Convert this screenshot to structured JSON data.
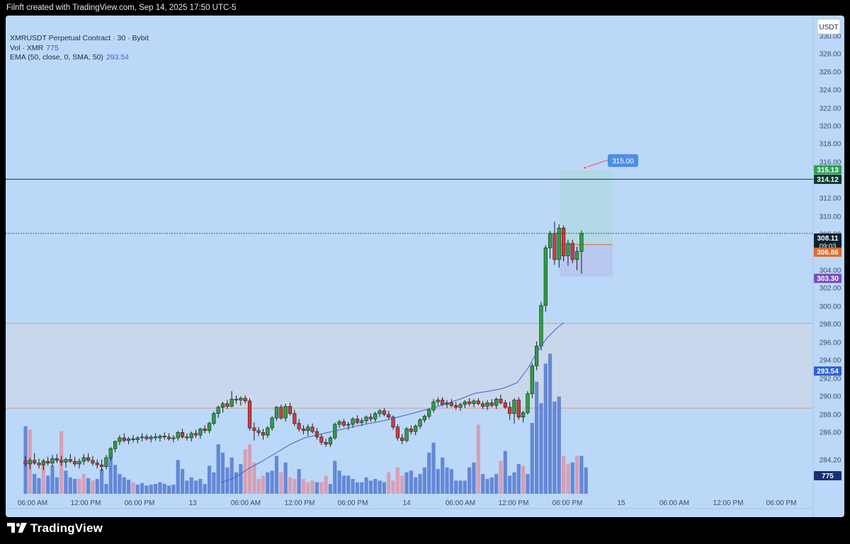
{
  "header": {
    "credit": "Filnft created with TradingView.com, Sep 14, 2025 17:50 UTC-5"
  },
  "legend": {
    "symbol": "XMRUSDT Perpetual Contract · 30 · Bybit",
    "vol_label": "Vol · XMR",
    "vol_value": "775",
    "ema_label": "EMA (50, close, 0, SMA, 50)",
    "ema_value": "293.54"
  },
  "currency_button": "USDT",
  "branding": {
    "logo_text": "TradingView"
  },
  "colors": {
    "background": "#bcd8f8",
    "up_candle": "#2ea043",
    "down_candle": "#d33b3b",
    "ema_line": "#3b63c9",
    "volume_up": "#5b7fd1",
    "volume_down": "#d79aae",
    "demand_zone": "#c9d7ec",
    "zone_border": "#d99a8a",
    "target_zone": "#b3d8e6",
    "stop_zone": "#b8c8f0"
  },
  "chart_data": {
    "type": "candlestick",
    "y_axis": {
      "range": [
        281.6,
        331.0
      ],
      "ticks": [
        "330.00",
        "328.00",
        "326.00",
        "324.00",
        "322.00",
        "320.00",
        "318.00",
        "316.00",
        "314.00",
        "312.00",
        "310.00",
        "308.00",
        "306.00",
        "304.00",
        "302.00",
        "300.00",
        "298.00",
        "296.00",
        "294.00",
        "292.00",
        "290.00",
        "288.00",
        "286.00",
        "284.20",
        "282.40"
      ]
    },
    "x_axis": {
      "ticks": [
        "06:00 AM",
        "12:00 PM",
        "06:00 PM",
        "13",
        "06:00 AM",
        "12:00 PM",
        "06:00 PM",
        "14",
        "06:00 AM",
        "12:00 PM",
        "06:00 PM",
        "15",
        "06:00 AM",
        "12:00 PM",
        "06:00 PM"
      ]
    },
    "price_labels": [
      {
        "value": "315.13",
        "color": "#2f9e55"
      },
      {
        "value": "314.12",
        "color": "#0d3b2e"
      },
      {
        "value": "308.11",
        "sub": "09:03",
        "color": "#0c2230"
      },
      {
        "value": "306.86",
        "color": "#e06a2b"
      },
      {
        "value": "303.30",
        "color": "#7b4fc0"
      },
      {
        "value": "293.54",
        "color": "#2f63d6"
      },
      {
        "value": "775",
        "color": "#1c2f73"
      }
    ],
    "lines": {
      "resistance": 314.12,
      "last_price": 308.11,
      "zone_top": 298.1,
      "zone_bottom": 288.7
    },
    "position": {
      "target": 315.13,
      "entry": 306.86,
      "stop": 303.3,
      "projection_label": "315.00",
      "projection_start": [
        315.0,
        315.0
      ]
    },
    "ohlc": [
      [
        282.8,
        283.4,
        282.2,
        282.5
      ],
      [
        282.5,
        283.2,
        281.9,
        282.9
      ],
      [
        282.9,
        283.7,
        282.4,
        282.6
      ],
      [
        282.6,
        283.1,
        282.0,
        282.4
      ],
      [
        282.4,
        283.0,
        281.8,
        282.8
      ],
      [
        282.8,
        283.3,
        282.3,
        282.6
      ],
      [
        282.6,
        283.5,
        282.2,
        283.1
      ],
      [
        283.1,
        283.6,
        282.6,
        282.9
      ],
      [
        282.9,
        283.4,
        282.3,
        282.7
      ],
      [
        282.7,
        283.2,
        282.1,
        283.0
      ],
      [
        283.0,
        283.6,
        282.6,
        282.8
      ],
      [
        282.8,
        283.3,
        282.2,
        282.5
      ],
      [
        282.5,
        283.1,
        282.0,
        282.8
      ],
      [
        282.8,
        283.6,
        282.4,
        283.2
      ],
      [
        283.2,
        283.7,
        282.7,
        282.9
      ],
      [
        282.9,
        283.4,
        282.3,
        282.6
      ],
      [
        282.6,
        283.0,
        282.0,
        282.4
      ],
      [
        282.4,
        283.0,
        281.7,
        282.2
      ],
      [
        282.2,
        283.5,
        281.9,
        283.2
      ],
      [
        283.2,
        284.4,
        282.9,
        284.2
      ],
      [
        284.2,
        285.1,
        283.8,
        285.0
      ],
      [
        285.0,
        285.7,
        284.6,
        285.4
      ],
      [
        285.4,
        285.9,
        284.9,
        285.1
      ],
      [
        285.1,
        285.5,
        284.7,
        285.3
      ],
      [
        285.3,
        285.7,
        284.9,
        285.2
      ],
      [
        285.2,
        285.6,
        284.8,
        285.4
      ],
      [
        285.4,
        285.9,
        285.0,
        285.5
      ],
      [
        285.5,
        285.8,
        285.1,
        285.3
      ],
      [
        285.3,
        285.7,
        284.9,
        285.5
      ],
      [
        285.5,
        285.9,
        285.1,
        285.4
      ],
      [
        285.4,
        285.8,
        285.0,
        285.6
      ],
      [
        285.6,
        286.0,
        285.2,
        285.5
      ],
      [
        285.5,
        285.9,
        285.1,
        285.3
      ],
      [
        285.3,
        285.7,
        284.9,
        285.4
      ],
      [
        285.4,
        286.2,
        285.1,
        286.0
      ],
      [
        286.0,
        286.4,
        285.3,
        285.5
      ],
      [
        285.5,
        285.9,
        285.1,
        285.4
      ],
      [
        285.4,
        286.1,
        285.0,
        285.9
      ],
      [
        285.9,
        286.3,
        285.4,
        285.7
      ],
      [
        285.7,
        286.5,
        285.3,
        286.4
      ],
      [
        286.4,
        286.8,
        285.9,
        286.2
      ],
      [
        286.2,
        287.2,
        285.9,
        287.0
      ],
      [
        287.0,
        288.3,
        286.8,
        288.1
      ],
      [
        288.1,
        289.0,
        287.6,
        288.8
      ],
      [
        288.8,
        289.4,
        288.2,
        289.2
      ],
      [
        289.2,
        289.6,
        288.6,
        288.9
      ],
      [
        288.9,
        290.6,
        288.8,
        289.7
      ],
      [
        289.7,
        290.1,
        289.2,
        289.6
      ],
      [
        289.6,
        290.0,
        289.0,
        289.8
      ],
      [
        289.8,
        290.1,
        289.2,
        289.5
      ],
      [
        289.5,
        289.8,
        286.2,
        286.5
      ],
      [
        286.5,
        287.1,
        285.1,
        286.2
      ],
      [
        286.2,
        286.6,
        285.6,
        286.0
      ],
      [
        286.0,
        286.4,
        285.2,
        285.7
      ],
      [
        285.7,
        286.7,
        285.4,
        286.5
      ],
      [
        286.5,
        287.8,
        286.2,
        287.6
      ],
      [
        287.6,
        288.9,
        287.3,
        288.8
      ],
      [
        288.8,
        289.1,
        287.4,
        287.6
      ],
      [
        287.6,
        289.2,
        287.2,
        288.9
      ],
      [
        288.9,
        289.3,
        287.9,
        288.1
      ],
      [
        288.1,
        288.5,
        286.7,
        287.0
      ],
      [
        287.0,
        287.5,
        286.1,
        286.4
      ],
      [
        286.4,
        286.8,
        285.8,
        286.2
      ],
      [
        286.2,
        286.9,
        285.6,
        286.6
      ],
      [
        286.6,
        287.0,
        285.9,
        286.1
      ],
      [
        286.1,
        286.5,
        285.2,
        285.5
      ],
      [
        285.5,
        285.8,
        284.6,
        284.9
      ],
      [
        284.9,
        285.3,
        284.4,
        284.7
      ],
      [
        284.7,
        285.6,
        284.4,
        285.4
      ],
      [
        285.4,
        287.1,
        285.2,
        286.9
      ],
      [
        286.9,
        287.4,
        286.5,
        287.2
      ],
      [
        287.2,
        287.5,
        286.6,
        286.8
      ],
      [
        286.8,
        287.2,
        286.3,
        286.9
      ],
      [
        286.9,
        287.7,
        286.5,
        287.5
      ],
      [
        287.5,
        287.9,
        286.9,
        287.1
      ],
      [
        287.1,
        287.6,
        286.7,
        287.3
      ],
      [
        287.3,
        287.9,
        286.9,
        287.7
      ],
      [
        287.7,
        288.1,
        287.2,
        287.5
      ],
      [
        287.5,
        288.3,
        287.2,
        288.1
      ],
      [
        288.1,
        288.6,
        287.7,
        288.4
      ],
      [
        288.4,
        288.7,
        287.8,
        288.0
      ],
      [
        288.0,
        288.4,
        287.4,
        287.7
      ],
      [
        287.7,
        287.9,
        286.3,
        286.6
      ],
      [
        286.6,
        286.9,
        285.1,
        285.4
      ],
      [
        285.4,
        285.8,
        284.7,
        285.1
      ],
      [
        285.1,
        286.6,
        284.9,
        286.4
      ],
      [
        286.4,
        286.8,
        285.8,
        286.1
      ],
      [
        286.1,
        286.9,
        285.7,
        286.7
      ],
      [
        286.7,
        287.6,
        286.4,
        287.4
      ],
      [
        287.4,
        288.0,
        287.1,
        287.8
      ],
      [
        287.8,
        288.7,
        287.5,
        288.5
      ],
      [
        288.5,
        289.7,
        288.2,
        289.4
      ],
      [
        289.4,
        289.9,
        289.0,
        289.6
      ],
      [
        289.6,
        289.9,
        288.9,
        289.1
      ],
      [
        289.1,
        289.6,
        288.7,
        289.3
      ],
      [
        289.3,
        289.7,
        288.8,
        289.0
      ],
      [
        289.0,
        289.4,
        288.5,
        288.8
      ],
      [
        288.8,
        289.3,
        288.4,
        289.1
      ],
      [
        289.1,
        289.6,
        288.7,
        289.4
      ],
      [
        289.4,
        289.8,
        288.9,
        289.2
      ],
      [
        289.2,
        289.7,
        288.8,
        289.5
      ],
      [
        289.5,
        289.8,
        289.0,
        289.2
      ],
      [
        289.2,
        289.5,
        288.6,
        288.9
      ],
      [
        288.9,
        289.6,
        288.5,
        289.3
      ],
      [
        289.3,
        289.7,
        288.8,
        289.0
      ],
      [
        289.0,
        289.9,
        288.6,
        289.7
      ],
      [
        289.7,
        290.2,
        289.1,
        289.3
      ],
      [
        289.3,
        289.6,
        288.6,
        288.8
      ],
      [
        288.8,
        289.4,
        287.4,
        288.1
      ],
      [
        288.1,
        289.8,
        287.0,
        289.6
      ],
      [
        289.6,
        289.9,
        287.4,
        287.7
      ],
      [
        287.7,
        288.4,
        287.1,
        288.2
      ],
      [
        288.2,
        290.6,
        288.0,
        290.3
      ],
      [
        290.3,
        293.7,
        289.8,
        293.4
      ],
      [
        293.4,
        296.1,
        292.9,
        295.6
      ],
      [
        295.6,
        300.5,
        295.1,
        300.1
      ],
      [
        300.1,
        306.8,
        299.4,
        306.5
      ],
      [
        306.5,
        308.4,
        305.3,
        308.1
      ],
      [
        308.1,
        309.4,
        304.6,
        305.2
      ],
      [
        305.2,
        309.1,
        304.3,
        308.7
      ],
      [
        308.7,
        309.0,
        305.0,
        305.6
      ],
      [
        305.6,
        307.4,
        304.5,
        307.0
      ],
      [
        307.0,
        307.4,
        304.8,
        305.2
      ],
      [
        305.2,
        306.6,
        304.0,
        306.1
      ],
      [
        306.1,
        308.4,
        303.6,
        308.1
      ]
    ],
    "volume": [
      [
        410,
        1
      ],
      [
        390,
        0
      ],
      [
        120,
        1
      ],
      [
        95,
        1
      ],
      [
        210,
        0
      ],
      [
        110,
        1
      ],
      [
        170,
        1
      ],
      [
        100,
        1
      ],
      [
        380,
        0
      ],
      [
        140,
        1
      ],
      [
        100,
        1
      ],
      [
        90,
        1
      ],
      [
        90,
        0
      ],
      [
        120,
        0
      ],
      [
        95,
        1
      ],
      [
        80,
        0
      ],
      [
        90,
        1
      ],
      [
        150,
        1
      ],
      [
        60,
        1
      ],
      [
        220,
        1
      ],
      [
        175,
        1
      ],
      [
        120,
        1
      ],
      [
        100,
        1
      ],
      [
        85,
        1
      ],
      [
        70,
        0
      ],
      [
        55,
        1
      ],
      [
        65,
        1
      ],
      [
        50,
        1
      ],
      [
        55,
        1
      ],
      [
        60,
        1
      ],
      [
        70,
        1
      ],
      [
        60,
        1
      ],
      [
        50,
        1
      ],
      [
        55,
        1
      ],
      [
        205,
        1
      ],
      [
        150,
        1
      ],
      [
        80,
        1
      ],
      [
        100,
        1
      ],
      [
        80,
        1
      ],
      [
        90,
        1
      ],
      [
        60,
        1
      ],
      [
        170,
        1
      ],
      [
        130,
        1
      ],
      [
        300,
        1
      ],
      [
        250,
        1
      ],
      [
        160,
        1
      ],
      [
        220,
        1
      ],
      [
        130,
        1
      ],
      [
        180,
        1
      ],
      [
        270,
        0
      ],
      [
        300,
        0
      ],
      [
        190,
        0
      ],
      [
        90,
        0
      ],
      [
        110,
        0
      ],
      [
        130,
        1
      ],
      [
        140,
        1
      ],
      [
        230,
        1
      ],
      [
        130,
        0
      ],
      [
        190,
        1
      ],
      [
        100,
        0
      ],
      [
        90,
        0
      ],
      [
        150,
        1
      ],
      [
        90,
        0
      ],
      [
        70,
        0
      ],
      [
        80,
        0
      ],
      [
        70,
        1
      ],
      [
        70,
        0
      ],
      [
        110,
        0
      ],
      [
        60,
        1
      ],
      [
        200,
        1
      ],
      [
        140,
        1
      ],
      [
        110,
        1
      ],
      [
        110,
        1
      ],
      [
        90,
        1
      ],
      [
        70,
        1
      ],
      [
        70,
        1
      ],
      [
        100,
        1
      ],
      [
        80,
        1
      ],
      [
        90,
        1
      ],
      [
        80,
        1
      ],
      [
        70,
        1
      ],
      [
        130,
        0
      ],
      [
        80,
        0
      ],
      [
        160,
        0
      ],
      [
        110,
        0
      ],
      [
        130,
        1
      ],
      [
        140,
        1
      ],
      [
        100,
        1
      ],
      [
        120,
        1
      ],
      [
        160,
        1
      ],
      [
        250,
        1
      ],
      [
        310,
        1
      ],
      [
        150,
        1
      ],
      [
        220,
        1
      ],
      [
        160,
        1
      ],
      [
        150,
        1
      ],
      [
        80,
        1
      ],
      [
        80,
        1
      ],
      [
        80,
        1
      ],
      [
        160,
        1
      ],
      [
        190,
        1
      ],
      [
        420,
        0
      ],
      [
        120,
        1
      ],
      [
        90,
        1
      ],
      [
        100,
        1
      ],
      [
        120,
        1
      ],
      [
        200,
        0
      ],
      [
        260,
        1
      ],
      [
        110,
        1
      ],
      [
        130,
        1
      ],
      [
        180,
        1
      ],
      [
        170,
        0
      ],
      [
        120,
        1
      ],
      [
        430,
        1
      ],
      [
        680,
        1
      ],
      [
        550,
        1
      ],
      [
        790,
        1
      ],
      [
        850,
        1
      ],
      [
        560,
        1
      ],
      [
        590,
        1
      ],
      [
        230,
        0
      ],
      [
        180,
        0
      ],
      [
        190,
        1
      ],
      [
        230,
        0
      ],
      [
        230,
        1
      ],
      [
        160,
        1
      ]
    ],
    "ema_polyline": [
      [
        312,
        660
      ],
      [
        330,
        654
      ],
      [
        350,
        641
      ],
      [
        370,
        630
      ],
      [
        390,
        618
      ],
      [
        410,
        606
      ],
      [
        430,
        597
      ],
      [
        460,
        590
      ],
      [
        500,
        581
      ],
      [
        540,
        573
      ],
      [
        580,
        563
      ],
      [
        620,
        552
      ],
      [
        650,
        542
      ],
      [
        670,
        534
      ],
      [
        690,
        531
      ],
      [
        710,
        527
      ],
      [
        730,
        519
      ],
      [
        745,
        499
      ],
      [
        758,
        476
      ],
      [
        772,
        456
      ],
      [
        786,
        442
      ],
      [
        796,
        434
      ]
    ]
  }
}
